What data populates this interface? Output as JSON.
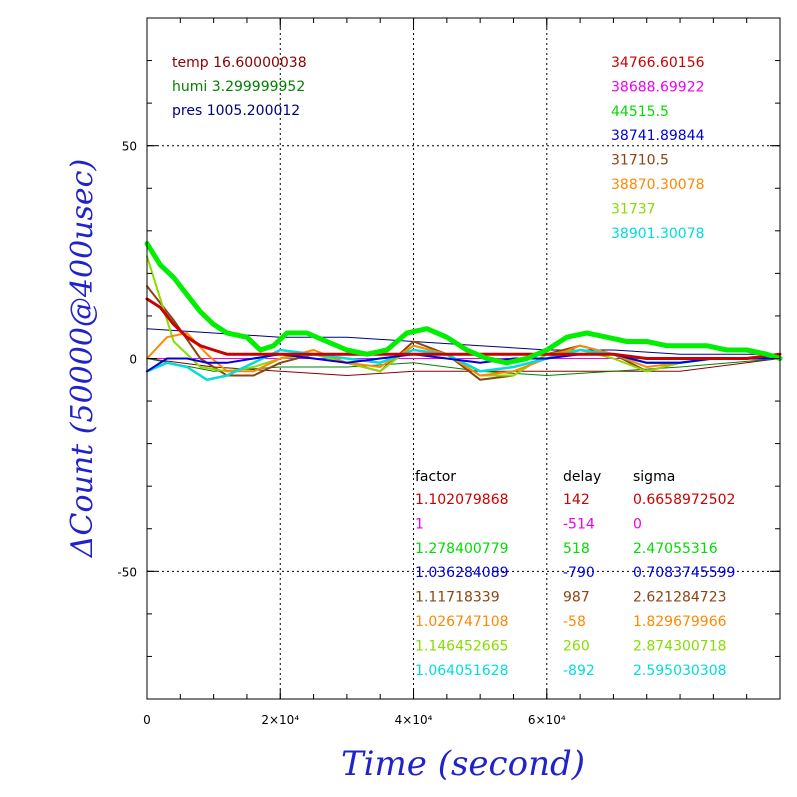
{
  "chart_data": {
    "type": "line",
    "xlabel": "Time (second)",
    "ylabel": "ΔCount (50000@400usec)",
    "xlim": [
      0,
      95000
    ],
    "ylim": [
      -80,
      80
    ],
    "x_ticks": [
      {
        "value": 0,
        "label": "0"
      },
      {
        "value": 20000,
        "label": "2×10⁴"
      },
      {
        "value": 40000,
        "label": "4×10⁴"
      },
      {
        "value": 60000,
        "label": "6×10⁴"
      }
    ],
    "y_ticks": [
      {
        "value": 50,
        "label": "50"
      },
      {
        "value": 0,
        "label": "0"
      },
      {
        "value": -50,
        "label": "-50"
      }
    ],
    "grid": true,
    "environment": [
      {
        "text": "temp 16.60000038",
        "color": "#8b0000"
      },
      {
        "text": "humi 3.299999952",
        "color": "#008000"
      },
      {
        "text": "pres 1005.200012",
        "color": "#000080"
      }
    ],
    "legend_values": [
      {
        "text": "34766.60156",
        "color": "#cc0000"
      },
      {
        "text": "38688.69922",
        "color": "#ee00ee"
      },
      {
        "text": "44515.5",
        "color": "#00dd00"
      },
      {
        "text": "38741.89844",
        "color": "#0000dd"
      },
      {
        "text": "31710.5",
        "color": "#8b4513"
      },
      {
        "text": "38870.30078",
        "color": "#ff8800"
      },
      {
        "text": "31737",
        "color": "#88dd00"
      },
      {
        "text": "38901.30078",
        "color": "#00dddd"
      }
    ],
    "stats_headers": [
      "factor",
      "delay",
      "sigma"
    ],
    "stats": [
      {
        "factor": "1.102079868",
        "delay": "142",
        "sigma": "0.6658972502",
        "color": "#cc0000"
      },
      {
        "factor": "1",
        "delay": "-514",
        "sigma": "0",
        "color": "#ee00ee"
      },
      {
        "factor": "1.278400779",
        "delay": "518",
        "sigma": "2.47055316",
        "color": "#00dd00"
      },
      {
        "factor": "1.036284089",
        "delay": "-790",
        "sigma": "0.7083745599",
        "color": "#0000dd"
      },
      {
        "factor": "1.11718339",
        "delay": "987",
        "sigma": "2.621284723",
        "color": "#8b4513"
      },
      {
        "factor": "1.026747108",
        "delay": "-58",
        "sigma": "1.829679966",
        "color": "#ff8800"
      },
      {
        "factor": "1.146452665",
        "delay": "260",
        "sigma": "2.874300718",
        "color": "#88dd00"
      },
      {
        "factor": "1.064051628",
        "delay": "-892",
        "sigma": "2.595030308",
        "color": "#00dddd"
      }
    ],
    "series": [
      {
        "color": "#8b0000",
        "width": 1,
        "x": [
          0,
          10000,
          20000,
          30000,
          40000,
          50000,
          60000,
          70000,
          80000,
          95000
        ],
        "y": [
          0,
          -2,
          -3,
          -4,
          -3,
          -3,
          -3,
          -3,
          -3,
          0
        ]
      },
      {
        "color": "#008000",
        "width": 1,
        "x": [
          0,
          10000,
          20000,
          30000,
          40000,
          50000,
          60000,
          70000,
          80000,
          95000
        ],
        "y": [
          0,
          -3,
          -2,
          -2,
          -1,
          -3,
          -4,
          -3,
          -2,
          0
        ]
      },
      {
        "color": "#000080",
        "width": 1,
        "x": [
          0,
          10000,
          20000,
          30000,
          40000,
          50000,
          60000,
          70000,
          80000,
          95000
        ],
        "y": [
          7,
          6,
          5,
          5,
          4,
          3,
          2,
          2,
          1,
          1
        ]
      },
      {
        "color": "#ee00ee",
        "width": 1,
        "x": [
          0,
          95000
        ],
        "y": [
          0,
          0
        ]
      },
      {
        "color": "#8b4513",
        "width": 2,
        "x": [
          0,
          4000,
          8000,
          12000,
          16000,
          20000,
          25000,
          30000,
          35000,
          40000,
          45000,
          50000,
          55000,
          60000,
          65000,
          70000,
          75000,
          80000,
          85000,
          90000,
          95000
        ],
        "y": [
          17,
          9,
          0,
          -4,
          -4,
          -1,
          1,
          -1,
          -3,
          4,
          1,
          -5,
          -4,
          1,
          3,
          1,
          -3,
          -1,
          0,
          0,
          0
        ]
      },
      {
        "color": "#88dd00",
        "width": 2,
        "x": [
          0,
          4000,
          8000,
          12000,
          16000,
          20000,
          25000,
          30000,
          35000,
          40000,
          45000,
          50000,
          55000,
          60000,
          65000,
          70000,
          75000,
          80000,
          85000,
          90000,
          95000
        ],
        "y": [
          24,
          4,
          -2,
          -3,
          -2,
          0,
          1,
          -1,
          -3,
          3,
          1,
          -4,
          -4,
          1,
          2,
          0,
          -3,
          -1,
          0,
          0,
          0
        ]
      },
      {
        "color": "#ff8800",
        "width": 2,
        "x": [
          0,
          3000,
          6000,
          9000,
          12000,
          16000,
          20000,
          25000,
          30000,
          35000,
          40000,
          45000,
          50000,
          55000,
          60000,
          65000,
          70000,
          75000,
          80000,
          85000,
          90000,
          95000
        ],
        "y": [
          0,
          5,
          6,
          1,
          -3,
          -3,
          0,
          2,
          -1,
          -2,
          3,
          1,
          -4,
          -3,
          0,
          3,
          1,
          -2,
          -1,
          0,
          0,
          0
        ]
      },
      {
        "color": "#00dddd",
        "width": 2.5,
        "x": [
          0,
          3000,
          6000,
          9000,
          12000,
          16000,
          20000,
          25000,
          30000,
          35000,
          40000,
          45000,
          50000,
          55000,
          60000,
          65000,
          70000,
          75000,
          80000,
          85000,
          90000,
          95000
        ],
        "y": [
          -3,
          -1,
          -2,
          -5,
          -4,
          -1,
          2,
          1,
          0,
          -1,
          2,
          1,
          -3,
          -2,
          0,
          2,
          1,
          -1,
          -1,
          0,
          0,
          0
        ]
      },
      {
        "color": "#0000dd",
        "width": 2,
        "x": [
          0,
          3000,
          6000,
          9000,
          12000,
          16000,
          20000,
          25000,
          30000,
          35000,
          40000,
          45000,
          50000,
          55000,
          60000,
          65000,
          70000,
          75000,
          80000,
          85000,
          90000,
          95000
        ],
        "y": [
          -3,
          0,
          0,
          -1,
          -1,
          0,
          1,
          0,
          -1,
          0,
          1,
          0,
          -1,
          0,
          0,
          1,
          1,
          -1,
          -1,
          0,
          0,
          0
        ]
      },
      {
        "color": "#cc0000",
        "width": 3,
        "x": [
          0,
          2000,
          4000,
          6000,
          8000,
          10000,
          12000,
          15000,
          20000,
          25000,
          30000,
          35000,
          40000,
          45000,
          50000,
          55000,
          60000,
          65000,
          70000,
          75000,
          80000,
          85000,
          90000,
          95000
        ],
        "y": [
          14,
          12,
          8,
          5,
          3,
          2,
          1,
          1,
          1,
          1,
          1,
          1,
          1,
          1,
          1,
          1,
          1,
          1,
          1,
          0,
          0,
          0,
          0,
          1
        ]
      },
      {
        "color": "#00ee00",
        "width": 5,
        "x": [
          0,
          2000,
          4000,
          6000,
          8000,
          10000,
          12000,
          15000,
          17000,
          19000,
          21000,
          24000,
          27000,
          30000,
          33000,
          36000,
          39000,
          42000,
          45000,
          48000,
          51000,
          54000,
          57000,
          60000,
          63000,
          66000,
          69000,
          72000,
          75000,
          78000,
          81000,
          84000,
          87000,
          90000,
          93000,
          95000
        ],
        "y": [
          27,
          22,
          19,
          15,
          11,
          8,
          6,
          5,
          2,
          3,
          6,
          6,
          4,
          2,
          1,
          2,
          6,
          7,
          5,
          2,
          0,
          -1,
          0,
          2,
          5,
          6,
          5,
          4,
          4,
          3,
          3,
          3,
          2,
          2,
          1,
          0
        ]
      }
    ]
  }
}
